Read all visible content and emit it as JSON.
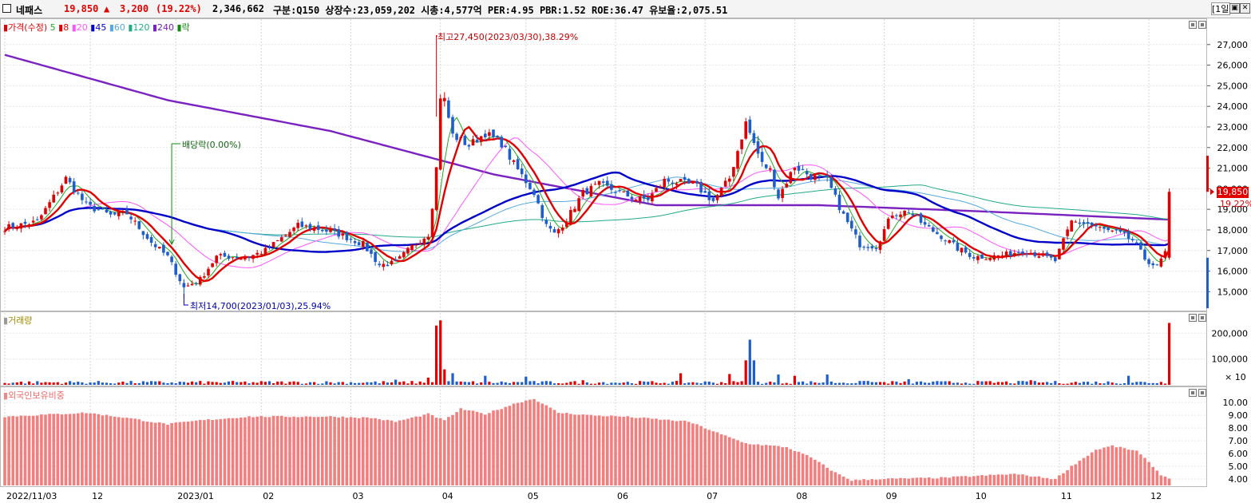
{
  "header": {
    "name": "네패스",
    "price": "19,850",
    "change_arrow": "▲",
    "change": "3,200",
    "change_pct": "(19.22%)",
    "volume": "2,346,662",
    "info": "구분:Q150 상장수:23,059,202 시총:4,577억 PER:4.95 PBR:1.52 ROE:36.47 유보율:2,075.51",
    "period": "[1일]"
  },
  "legend": {
    "price_label": "가격(수정)",
    "ma_labels": [
      "5",
      "8",
      "20",
      "45",
      "60",
      "120",
      "240"
    ],
    "ma_colors": [
      "#22aa22",
      "#e00000",
      "#ff55ff",
      "#0000c8",
      "#55aadd",
      "#22aa88",
      "#7a22c0"
    ],
    "last_label": "락"
  },
  "annotations": {
    "high": "최고27,450(2023/03/30),38.29%",
    "low": "최저14,700(2023/01/03),25.94%",
    "dividend": "배당락(0.00%)",
    "last_price": "19,850",
    "last_pct": "19.22%"
  },
  "volume_panel": {
    "title": "거래량",
    "unit": "× 10"
  },
  "foreign_panel": {
    "title": "외국인보유비중"
  },
  "chart_data": [
    {
      "type": "candlestick",
      "title": "가격(수정)",
      "y_ticks": [
        15000,
        16000,
        17000,
        18000,
        19000,
        20000,
        21000,
        22000,
        23000,
        24000,
        25000,
        26000,
        27000
      ],
      "ylim": [
        14200,
        28000
      ],
      "x_labels": [
        "2022/11/03",
        "12",
        "2023/01",
        "02",
        "03",
        "04",
        "05",
        "06",
        "07",
        "08",
        "09",
        "10",
        "11",
        "12"
      ],
      "close_anchors": [
        [
          0,
          18100
        ],
        [
          8,
          18400
        ],
        [
          15,
          20500
        ],
        [
          20,
          19200
        ],
        [
          26,
          18700
        ],
        [
          30,
          18800
        ],
        [
          36,
          17400
        ],
        [
          40,
          16700
        ],
        [
          44,
          15200
        ],
        [
          48,
          15600
        ],
        [
          52,
          16700
        ],
        [
          60,
          16700
        ],
        [
          64,
          17000
        ],
        [
          68,
          17600
        ],
        [
          72,
          18200
        ],
        [
          76,
          18100
        ],
        [
          82,
          17800
        ],
        [
          88,
          17300
        ],
        [
          92,
          16300
        ],
        [
          96,
          16400
        ],
        [
          100,
          17200
        ],
        [
          104,
          17800
        ],
        [
          105,
          19200
        ],
        [
          106,
          21000
        ],
        [
          107,
          24500
        ],
        [
          108,
          24300
        ],
        [
          110,
          22600
        ],
        [
          114,
          22100
        ],
        [
          118,
          22700
        ],
        [
          122,
          22200
        ],
        [
          125,
          21200
        ],
        [
          130,
          19800
        ],
        [
          133,
          18200
        ],
        [
          135,
          17800
        ],
        [
          138,
          18500
        ],
        [
          142,
          19800
        ],
        [
          146,
          20200
        ],
        [
          150,
          19900
        ],
        [
          155,
          19500
        ],
        [
          158,
          19500
        ],
        [
          162,
          20400
        ],
        [
          166,
          20300
        ],
        [
          170,
          20100
        ],
        [
          174,
          19400
        ],
        [
          178,
          20500
        ],
        [
          182,
          23200
        ],
        [
          184,
          22200
        ],
        [
          186,
          21200
        ],
        [
          188,
          20900
        ],
        [
          190,
          19600
        ],
        [
          194,
          21100
        ],
        [
          198,
          20600
        ],
        [
          202,
          20400
        ],
        [
          206,
          18700
        ],
        [
          210,
          17300
        ],
        [
          214,
          17200
        ],
        [
          218,
          18800
        ],
        [
          222,
          18900
        ],
        [
          226,
          18200
        ],
        [
          230,
          17700
        ],
        [
          234,
          17100
        ],
        [
          238,
          16700
        ],
        [
          242,
          16700
        ],
        [
          246,
          16800
        ],
        [
          250,
          17000
        ],
        [
          254,
          16800
        ],
        [
          258,
          16500
        ],
        [
          262,
          18400
        ],
        [
          266,
          18300
        ],
        [
          270,
          18000
        ],
        [
          274,
          17800
        ],
        [
          277,
          17500
        ],
        [
          280,
          16600
        ],
        [
          283,
          16200
        ],
        [
          285,
          16900
        ],
        [
          286,
          19850
        ]
      ],
      "last_close": 19850,
      "ma240_anchors": [
        [
          0,
          26500
        ],
        [
          40,
          24300
        ],
        [
          80,
          22800
        ],
        [
          120,
          20700
        ],
        [
          160,
          19200
        ],
        [
          200,
          19200
        ],
        [
          240,
          18900
        ],
        [
          286,
          18500
        ]
      ]
    },
    {
      "type": "bar",
      "title": "거래량",
      "y_ticks": [
        100000,
        200000
      ],
      "ylim": [
        0,
        260000
      ],
      "spikes": [
        [
          96,
          20000
        ],
        [
          104,
          28000
        ],
        [
          106,
          230000
        ],
        [
          107,
          250000
        ],
        [
          108,
          60000
        ],
        [
          110,
          45000
        ],
        [
          118,
          35000
        ],
        [
          128,
          32000
        ],
        [
          142,
          18000
        ],
        [
          166,
          45000
        ],
        [
          178,
          42000
        ],
        [
          182,
          95000
        ],
        [
          183,
          175000
        ],
        [
          184,
          95000
        ],
        [
          190,
          40000
        ],
        [
          194,
          35000
        ],
        [
          202,
          40000
        ],
        [
          212,
          15000
        ],
        [
          222,
          22000
        ],
        [
          252,
          18000
        ],
        [
          276,
          35000
        ],
        [
          286,
          240000
        ]
      ],
      "base": 9000
    },
    {
      "type": "bar",
      "title": "외국인보유비중",
      "y_ticks": [
        4.0,
        5.0,
        6.0,
        7.0,
        8.0,
        9.0,
        10.0
      ],
      "ylim": [
        3.5,
        10.7
      ],
      "anchors": [
        [
          0,
          8.9
        ],
        [
          20,
          9.2
        ],
        [
          30,
          8.8
        ],
        [
          40,
          8.3
        ],
        [
          48,
          8.6
        ],
        [
          60,
          8.9
        ],
        [
          80,
          8.9
        ],
        [
          90,
          8.8
        ],
        [
          96,
          8.5
        ],
        [
          104,
          9.1
        ],
        [
          108,
          8.6
        ],
        [
          112,
          9.5
        ],
        [
          118,
          9.1
        ],
        [
          126,
          10.0
        ],
        [
          130,
          10.3
        ],
        [
          136,
          9.2
        ],
        [
          144,
          9.0
        ],
        [
          152,
          8.9
        ],
        [
          160,
          8.7
        ],
        [
          168,
          8.5
        ],
        [
          172,
          8.0
        ],
        [
          176,
          7.5
        ],
        [
          182,
          6.8
        ],
        [
          192,
          6.5
        ],
        [
          198,
          5.7
        ],
        [
          204,
          4.5
        ],
        [
          208,
          3.9
        ],
        [
          214,
          4.0
        ],
        [
          230,
          4.1
        ],
        [
          248,
          4.4
        ],
        [
          258,
          4.0
        ],
        [
          262,
          5.0
        ],
        [
          268,
          6.3
        ],
        [
          272,
          6.6
        ],
        [
          278,
          6.2
        ],
        [
          282,
          5.0
        ],
        [
          284,
          4.3
        ],
        [
          286,
          4.1
        ]
      ]
    }
  ]
}
